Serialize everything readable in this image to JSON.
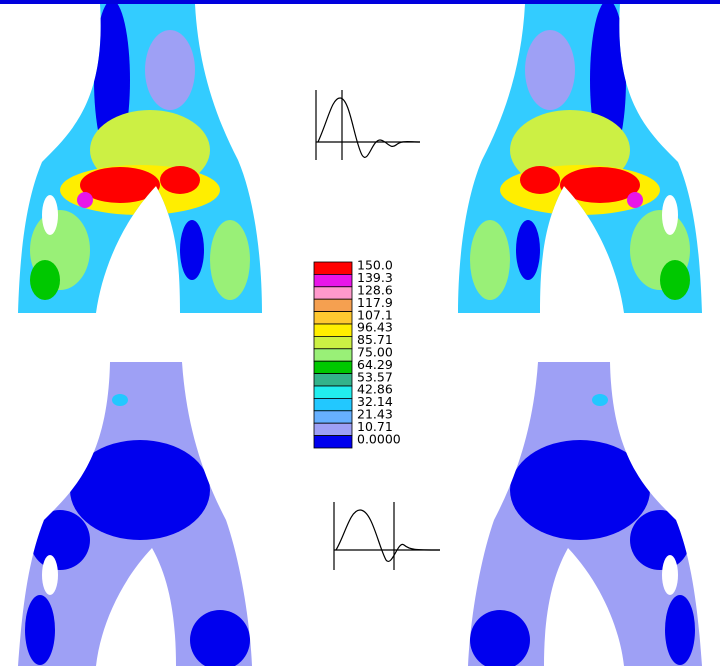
{
  "legend": {
    "levels": [
      {
        "label": "150.0",
        "color": "#ff0000"
      },
      {
        "label": "139.3",
        "color": "#e815e8"
      },
      {
        "label": "128.6",
        "color": "#ff99cc"
      },
      {
        "label": "117.9",
        "color": "#f5a050"
      },
      {
        "label": "107.1",
        "color": "#ffc830"
      },
      {
        "label": "96.43",
        "color": "#ffee00"
      },
      {
        "label": "85.71",
        "color": "#ccf044"
      },
      {
        "label": "75.00",
        "color": "#99f077"
      },
      {
        "label": "64.29",
        "color": "#00c800"
      },
      {
        "label": "53.57",
        "color": "#33b38a"
      },
      {
        "label": "42.86",
        "color": "#22eeee"
      },
      {
        "label": "32.14",
        "color": "#22c8ff"
      },
      {
        "label": "21.43",
        "color": "#66b0ff"
      },
      {
        "label": "10.71",
        "color": "#9ea0f5"
      },
      {
        "label": "0.0000",
        "color": "#0000ee"
      }
    ]
  }
}
